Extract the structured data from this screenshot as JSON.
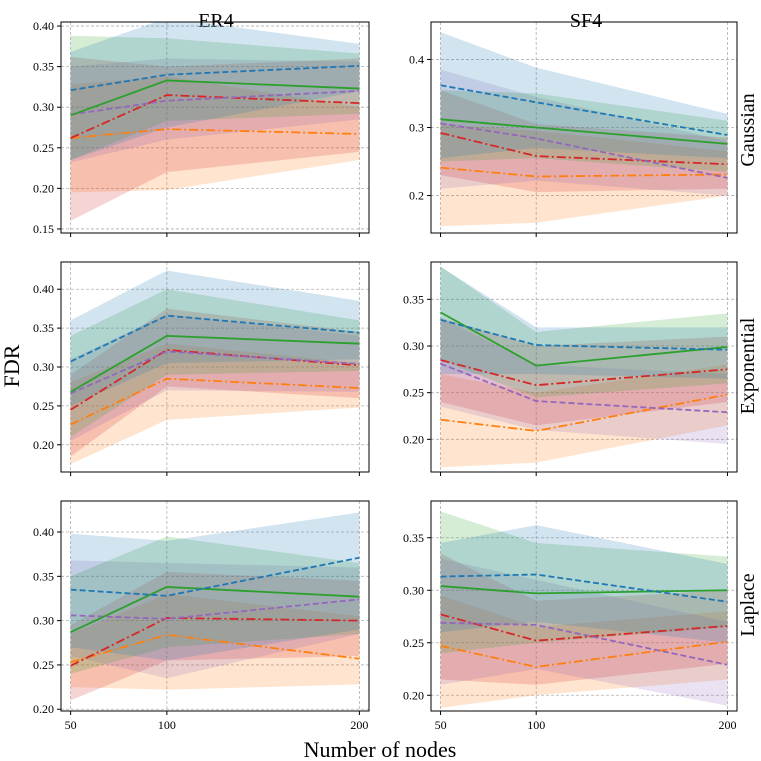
{
  "figure": {
    "xlabel": "Number of nodes",
    "ylabel": "FDR",
    "col_titles": [
      "ER4",
      "SF4"
    ],
    "row_titles": [
      "Gaussian",
      "Exponential",
      "Laplace"
    ]
  },
  "colors": {
    "blue": "#1f77b4",
    "orange": "#ff7f0e",
    "green": "#2ca02c",
    "red": "#d62728",
    "purple": "#9467bd"
  },
  "chart_data": [
    {
      "type": "line",
      "row": "Gaussian",
      "col": "ER4",
      "x": [
        50,
        100,
        200
      ],
      "xlim": [
        45,
        205
      ],
      "xticks": [
        50,
        100,
        200
      ],
      "ylim": [
        0.145,
        0.405
      ],
      "yticks": [
        0.15,
        0.2,
        0.25,
        0.3,
        0.35,
        0.4
      ],
      "grid": true,
      "series": [
        {
          "color": "orange",
          "style": "dashdot",
          "values": [
            0.262,
            0.273,
            0.267
          ],
          "band": [
            [
              0.195,
              0.328
            ],
            [
              0.198,
              0.338
            ],
            [
              0.235,
              0.3
            ]
          ]
        },
        {
          "color": "red",
          "style": "dashdot",
          "values": [
            0.262,
            0.315,
            0.305
          ],
          "band": [
            [
              0.16,
              0.362
            ],
            [
              0.22,
              0.35
            ],
            [
              0.245,
              0.36
            ]
          ]
        },
        {
          "color": "purple",
          "style": "dashed",
          "values": [
            0.291,
            0.308,
            0.32
          ],
          "band": [
            [
              0.232,
              0.35
            ],
            [
              0.26,
              0.36
            ],
            [
              0.285,
              0.356
            ]
          ]
        },
        {
          "color": "green",
          "style": "solid",
          "values": [
            0.29,
            0.333,
            0.323
          ],
          "band": [
            [
              0.235,
              0.388
            ],
            [
              0.283,
              0.385
            ],
            [
              0.292,
              0.366
            ]
          ]
        },
        {
          "color": "blue",
          "style": "dashed",
          "values": [
            0.321,
            0.34,
            0.351
          ],
          "band": [
            [
              0.235,
              0.368
            ],
            [
              0.275,
              0.41
            ],
            [
              0.32,
              0.378
            ]
          ]
        }
      ]
    },
    {
      "type": "line",
      "row": "Gaussian",
      "col": "SF4",
      "x": [
        50,
        100,
        200
      ],
      "xlim": [
        45,
        205
      ],
      "xticks": [
        50,
        100,
        200
      ],
      "ylim": [
        0.145,
        0.455
      ],
      "yticks": [
        0.2,
        0.3,
        0.4
      ],
      "grid": true,
      "series": [
        {
          "color": "orange",
          "style": "dashdot",
          "values": [
            0.241,
            0.228,
            0.231
          ],
          "band": [
            [
              0.155,
              0.305
            ],
            [
              0.16,
              0.295
            ],
            [
              0.2,
              0.265
            ]
          ]
        },
        {
          "color": "red",
          "style": "dashdot",
          "values": [
            0.292,
            0.258,
            0.246
          ],
          "band": [
            [
              0.23,
              0.355
            ],
            [
              0.205,
              0.305
            ],
            [
              0.21,
              0.285
            ]
          ]
        },
        {
          "color": "purple",
          "style": "dashed",
          "values": [
            0.306,
            0.284,
            0.226
          ],
          "band": [
            [
              0.21,
              0.385
            ],
            [
              0.222,
              0.345
            ],
            [
              0.2,
              0.28
            ]
          ]
        },
        {
          "color": "green",
          "style": "solid",
          "values": [
            0.312,
            0.3,
            0.276
          ],
          "band": [
            [
              0.25,
              0.355
            ],
            [
              0.255,
              0.35
            ],
            [
              0.235,
              0.31
            ]
          ]
        },
        {
          "color": "blue",
          "style": "dashed",
          "values": [
            0.362,
            0.337,
            0.289
          ],
          "band": [
            [
              0.255,
              0.44
            ],
            [
              0.27,
              0.388
            ],
            [
              0.255,
              0.32
            ]
          ]
        }
      ]
    },
    {
      "type": "line",
      "row": "Exponential",
      "col": "ER4",
      "x": [
        50,
        100,
        200
      ],
      "xlim": [
        45,
        205
      ],
      "xticks": [
        50,
        100,
        200
      ],
      "ylim": [
        0.165,
        0.435
      ],
      "yticks": [
        0.2,
        0.25,
        0.3,
        0.35,
        0.4
      ],
      "grid": true,
      "series": [
        {
          "color": "orange",
          "style": "dashdot",
          "values": [
            0.226,
            0.285,
            0.273
          ],
          "band": [
            [
              0.175,
              0.28
            ],
            [
              0.232,
              0.33
            ],
            [
              0.248,
              0.305
            ]
          ]
        },
        {
          "color": "red",
          "style": "dashdot",
          "values": [
            0.245,
            0.322,
            0.302
          ],
          "band": [
            [
              0.185,
              0.29
            ],
            [
              0.275,
              0.375
            ],
            [
              0.26,
              0.345
            ]
          ]
        },
        {
          "color": "purple",
          "style": "dashed",
          "values": [
            0.266,
            0.32,
            0.304
          ],
          "band": [
            [
              0.205,
              0.31
            ],
            [
              0.27,
              0.368
            ],
            [
              0.268,
              0.34
            ]
          ]
        },
        {
          "color": "green",
          "style": "solid",
          "values": [
            0.268,
            0.34,
            0.33
          ],
          "band": [
            [
              0.21,
              0.34
            ],
            [
              0.29,
              0.4
            ],
            [
              0.295,
              0.36
            ]
          ]
        },
        {
          "color": "blue",
          "style": "dashed",
          "values": [
            0.307,
            0.366,
            0.344
          ],
          "band": [
            [
              0.25,
              0.36
            ],
            [
              0.305,
              0.424
            ],
            [
              0.31,
              0.385
            ]
          ]
        }
      ]
    },
    {
      "type": "line",
      "row": "Exponential",
      "col": "SF4",
      "x": [
        50,
        100,
        200
      ],
      "xlim": [
        45,
        205
      ],
      "xticks": [
        50,
        100,
        200
      ],
      "ylim": [
        0.165,
        0.39
      ],
      "yticks": [
        0.2,
        0.25,
        0.3,
        0.35
      ],
      "grid": true,
      "series": [
        {
          "color": "orange",
          "style": "dashdot",
          "values": [
            0.221,
            0.209,
            0.248
          ],
          "band": [
            [
              0.17,
              0.27
            ],
            [
              0.175,
              0.25
            ],
            [
              0.215,
              0.28
            ]
          ]
        },
        {
          "color": "red",
          "style": "dashdot",
          "values": [
            0.285,
            0.258,
            0.275
          ],
          "band": [
            [
              0.24,
              0.33
            ],
            [
              0.215,
              0.3
            ],
            [
              0.24,
              0.31
            ]
          ]
        },
        {
          "color": "purple",
          "style": "dashed",
          "values": [
            0.281,
            0.241,
            0.229
          ],
          "band": [
            [
              0.235,
              0.33
            ],
            [
              0.21,
              0.28
            ],
            [
              0.195,
              0.27
            ]
          ]
        },
        {
          "color": "green",
          "style": "solid",
          "values": [
            0.336,
            0.279,
            0.299
          ],
          "band": [
            [
              0.285,
              0.385
            ],
            [
              0.245,
              0.315
            ],
            [
              0.26,
              0.335
            ]
          ]
        },
        {
          "color": "blue",
          "style": "dashed",
          "values": [
            0.328,
            0.301,
            0.296
          ],
          "band": [
            [
              0.27,
              0.385
            ],
            [
              0.27,
              0.32
            ],
            [
              0.265,
              0.32
            ]
          ]
        }
      ]
    },
    {
      "type": "line",
      "row": "Laplace",
      "col": "ER4",
      "x": [
        50,
        100,
        200
      ],
      "xlim": [
        45,
        205
      ],
      "xticks": [
        50,
        100,
        200
      ],
      "ylim": [
        0.198,
        0.435
      ],
      "yticks": [
        0.2,
        0.25,
        0.3,
        0.35,
        0.4
      ],
      "grid": true,
      "series": [
        {
          "color": "orange",
          "style": "dashdot",
          "values": [
            0.253,
            0.284,
            0.257
          ],
          "band": [
            [
              0.225,
              0.285
            ],
            [
              0.222,
              0.33
            ],
            [
              0.228,
              0.305
            ]
          ]
        },
        {
          "color": "red",
          "style": "dashdot",
          "values": [
            0.249,
            0.303,
            0.3
          ],
          "band": [
            [
              0.21,
              0.295
            ],
            [
              0.255,
              0.355
            ],
            [
              0.26,
              0.345
            ]
          ]
        },
        {
          "color": "purple",
          "style": "dashed",
          "values": [
            0.306,
            0.302,
            0.324
          ],
          "band": [
            [
              0.26,
              0.368
            ],
            [
              0.235,
              0.365
            ],
            [
              0.285,
              0.36
            ]
          ]
        },
        {
          "color": "green",
          "style": "solid",
          "values": [
            0.287,
            0.338,
            0.327
          ],
          "band": [
            [
              0.24,
              0.35
            ],
            [
              0.27,
              0.395
            ],
            [
              0.285,
              0.365
            ]
          ]
        },
        {
          "color": "blue",
          "style": "dashed",
          "values": [
            0.335,
            0.328,
            0.371
          ],
          "band": [
            [
              0.27,
              0.398
            ],
            [
              0.255,
              0.39
            ],
            [
              0.29,
              0.422
            ]
          ]
        }
      ]
    },
    {
      "type": "line",
      "row": "Laplace",
      "col": "SF4",
      "x": [
        50,
        100,
        200
      ],
      "xlim": [
        45,
        205
      ],
      "xticks": [
        50,
        100,
        200
      ],
      "ylim": [
        0.185,
        0.385
      ],
      "yticks": [
        0.2,
        0.25,
        0.3,
        0.35
      ],
      "grid": true,
      "series": [
        {
          "color": "orange",
          "style": "dashdot",
          "values": [
            0.247,
            0.227,
            0.251
          ],
          "band": [
            [
              0.188,
              0.295
            ],
            [
              0.2,
              0.265
            ],
            [
              0.215,
              0.28
            ]
          ]
        },
        {
          "color": "red",
          "style": "dashdot",
          "values": [
            0.277,
            0.252,
            0.266
          ],
          "band": [
            [
              0.215,
              0.335
            ],
            [
              0.21,
              0.29
            ],
            [
              0.23,
              0.3
            ]
          ]
        },
        {
          "color": "purple",
          "style": "dashed",
          "values": [
            0.269,
            0.267,
            0.229
          ],
          "band": [
            [
              0.21,
              0.33
            ],
            [
              0.225,
              0.31
            ],
            [
              0.19,
              0.27
            ]
          ]
        },
        {
          "color": "green",
          "style": "solid",
          "values": [
            0.304,
            0.297,
            0.3
          ],
          "band": [
            [
              0.24,
              0.375
            ],
            [
              0.25,
              0.345
            ],
            [
              0.265,
              0.332
            ]
          ]
        },
        {
          "color": "blue",
          "style": "dashed",
          "values": [
            0.313,
            0.315,
            0.289
          ],
          "band": [
            [
              0.26,
              0.345
            ],
            [
              0.27,
              0.362
            ],
            [
              0.25,
              0.325
            ]
          ]
        }
      ]
    }
  ]
}
